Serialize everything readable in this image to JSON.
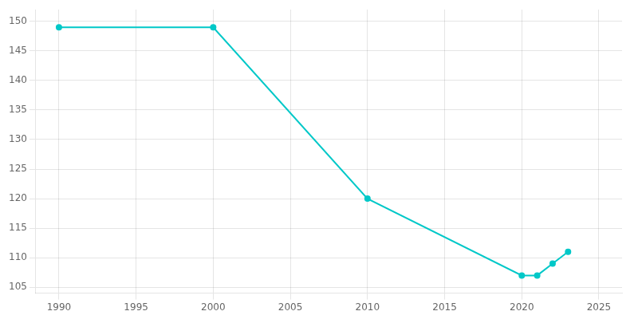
{
  "chart_data": {
    "type": "line",
    "x": [
      1990,
      2000,
      2010,
      2020,
      2021,
      2022,
      2023
    ],
    "values": [
      149,
      149,
      120,
      107,
      107,
      109,
      111
    ],
    "color": "#00C8C8",
    "marker": "circle",
    "xlim": [
      1988.5,
      2026.5
    ],
    "ylim": [
      104,
      152
    ],
    "xticks": [
      1990,
      1995,
      2000,
      2005,
      2010,
      2015,
      2020,
      2025
    ],
    "yticks": [
      105,
      110,
      115,
      120,
      125,
      130,
      135,
      140,
      145,
      150
    ],
    "grid": true
  }
}
